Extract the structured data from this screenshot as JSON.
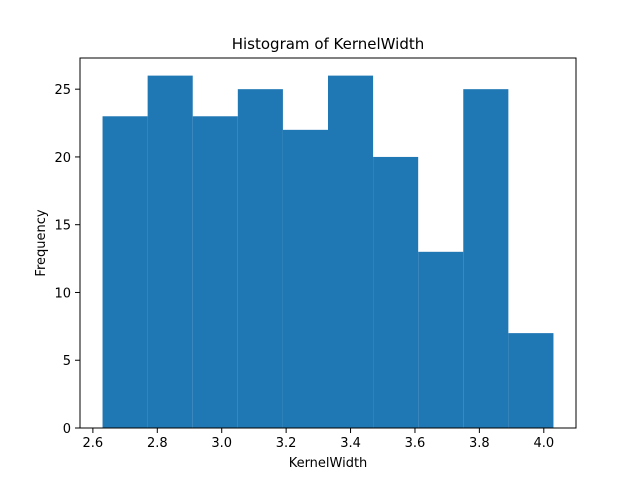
{
  "chart_data": {
    "type": "bar",
    "title": "Histogram of KernelWidth",
    "xlabel": "KernelWidth",
    "ylabel": "Frequency",
    "bins": [
      {
        "start": 2.63,
        "end": 2.77,
        "count": 23
      },
      {
        "start": 2.77,
        "end": 2.91,
        "count": 26
      },
      {
        "start": 2.91,
        "end": 3.05,
        "count": 23
      },
      {
        "start": 3.05,
        "end": 3.19,
        "count": 25
      },
      {
        "start": 3.19,
        "end": 3.33,
        "count": 22
      },
      {
        "start": 3.33,
        "end": 3.47,
        "count": 26
      },
      {
        "start": 3.47,
        "end": 3.61,
        "count": 20
      },
      {
        "start": 3.61,
        "end": 3.75,
        "count": 13
      },
      {
        "start": 3.75,
        "end": 3.89,
        "count": 25
      },
      {
        "start": 3.89,
        "end": 4.03,
        "count": 7
      }
    ],
    "xlim": [
      2.56,
      4.1
    ],
    "ylim": [
      0,
      27.3
    ],
    "xticks": [
      "2.6",
      "2.8",
      "3.0",
      "3.2",
      "3.4",
      "3.6",
      "3.8",
      "4.0"
    ],
    "yticks": [
      "0",
      "5",
      "10",
      "15",
      "20",
      "25"
    ],
    "bar_color": "#1f77b4",
    "grid": false,
    "legend": "none"
  }
}
